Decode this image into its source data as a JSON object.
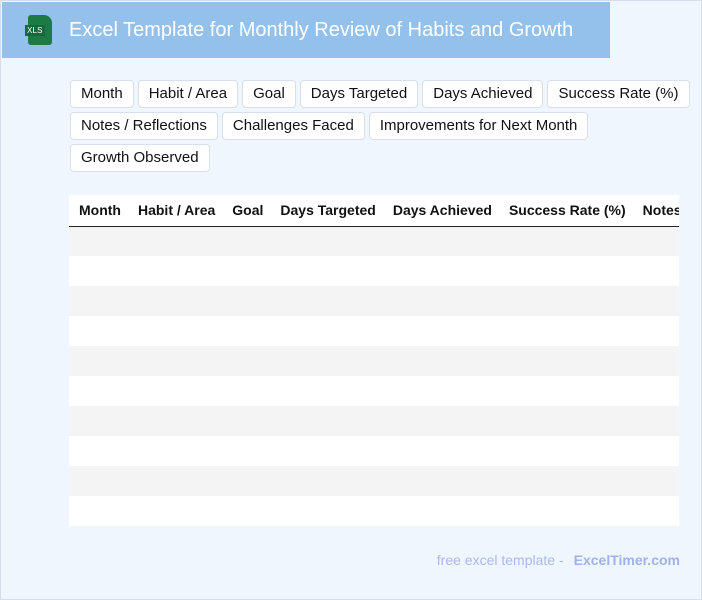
{
  "header": {
    "icon": "xls-file-icon",
    "icon_label": "XLS",
    "title": "Excel Template for Monthly Review of Habits and Growth"
  },
  "chips": [
    "Month",
    "Habit / Area",
    "Goal",
    "Days Targeted",
    "Days Achieved",
    "Success Rate (%)",
    "Notes / Reflections",
    "Challenges Faced",
    "Improvements for Next Month",
    "Growth Observed"
  ],
  "table": {
    "columns": [
      "Month",
      "Habit / Area",
      "Goal",
      "Days Targeted",
      "Days Achieved",
      "Success Rate (%)",
      "Notes / Reflections",
      "Challenges Faced",
      "Improvements for Next Month",
      "Growth Observed"
    ],
    "row_count": 10
  },
  "footer": {
    "text": "free excel template -",
    "brand": "ExcelTimer.com"
  }
}
